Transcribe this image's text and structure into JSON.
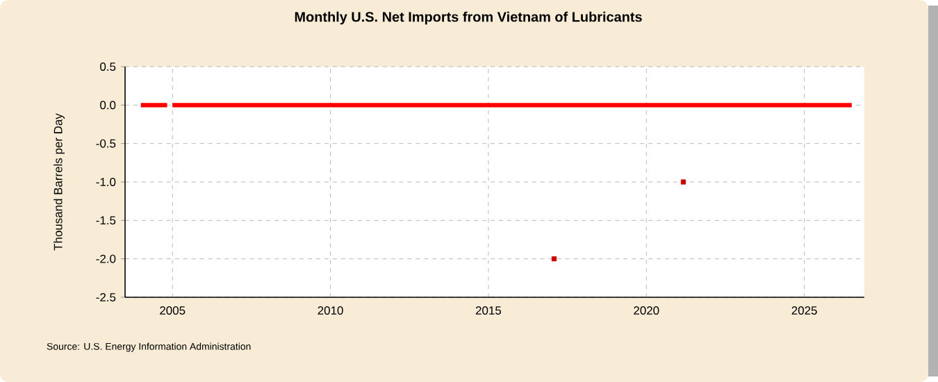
{
  "chart_data": {
    "type": "line",
    "title": "Monthly U.S. Net Imports from Vietnam of Lubricants",
    "ylabel": "Thousand Barrels per Day",
    "series": [
      {
        "color": "#ff0000",
        "marker": "none",
        "x": [
          2004.0,
          2004.83,
          2004.92,
          2005.0,
          2026.5
        ],
        "values": [
          0,
          0,
          null,
          0,
          0
        ]
      },
      {
        "type": "scatter",
        "color": "#cc0000",
        "x": [
          2017.08,
          2021.17
        ],
        "values": [
          -2,
          -1
        ]
      }
    ],
    "xlim": [
      2003.5,
      2026.9
    ],
    "xticks": [
      2005,
      2010,
      2015,
      2020,
      2025
    ],
    "ylim": [
      -2.5,
      0.5
    ],
    "yticks": [
      {
        "value": 0.5,
        "label": "0.5"
      },
      {
        "value": 0,
        "label": "0.0"
      },
      {
        "value": -0.5,
        "label": "-0.5"
      },
      {
        "value": -1,
        "label": "-1.0"
      },
      {
        "value": -1.5,
        "label": "-1.5"
      },
      {
        "value": -2,
        "label": "-2.0"
      },
      {
        "value": -2.5,
        "label": "-2.5"
      }
    ],
    "grid": true,
    "marker": "square",
    "annotations": [
      "Source: U.S. Energy Information Administration"
    ]
  }
}
